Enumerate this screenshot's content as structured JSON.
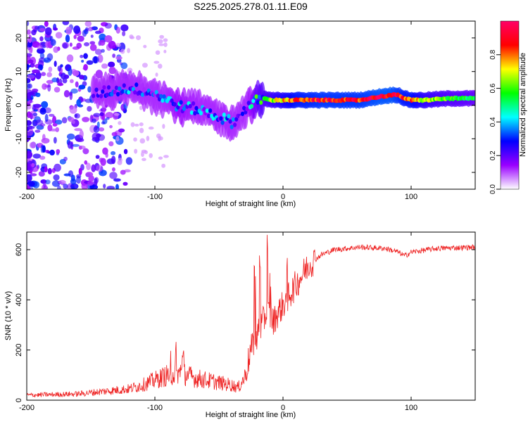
{
  "figure_title": "S225.2025.278.01.11.E09",
  "chart_data": [
    {
      "type": "heatmap",
      "title": "S225.2025.278.01.11.E09",
      "xlabel": "Height of straight line (km)",
      "ylabel": "Frequency (Hz)",
      "xlim": [
        -200,
        150
      ],
      "ylim": [
        -25,
        25
      ],
      "xticks": [
        -200,
        -100,
        0,
        100
      ],
      "yticks": [
        -20,
        -10,
        0,
        10,
        20
      ],
      "colorbar": {
        "label": "Normalized spectral amplitude",
        "range": [
          0,
          1
        ],
        "ticks": [
          "0.0",
          "0.2",
          "0.4",
          "0.6",
          "0.8"
        ],
        "tick_values": [
          0.0,
          0.2,
          0.4,
          0.6,
          0.8
        ],
        "colormap": [
          "#ffffff",
          "#9900ff",
          "#0000ff",
          "#00ffff",
          "#00ff00",
          "#ffff00",
          "#ff0000",
          "#ff0066"
        ]
      },
      "ridge": {
        "description": "frequency trace of strongest signal vs height",
        "x": [
          -145,
          -130,
          -120,
          -110,
          -100,
          -90,
          -80,
          -70,
          -60,
          -50,
          -40,
          -35,
          -30,
          -25,
          -20,
          -15,
          -10,
          0,
          10,
          30,
          60,
          75,
          85,
          90,
          95,
          100,
          110,
          130,
          150
        ],
        "freq": [
          3.5,
          4.5,
          5,
          4.5,
          3.5,
          1.5,
          -0.5,
          -1,
          -2,
          -3.5,
          -5,
          -4,
          -1,
          0,
          1.5,
          2,
          1.5,
          1.5,
          1.5,
          1.5,
          1.5,
          2.5,
          3,
          3,
          2,
          1.5,
          1.5,
          2.0,
          2.0
        ],
        "amplitude": [
          0.2,
          0.3,
          0.35,
          0.3,
          0.3,
          0.35,
          0.4,
          0.35,
          0.35,
          0.35,
          0.35,
          0.2,
          0.25,
          0.4,
          0.55,
          0.6,
          0.65,
          0.75,
          0.85,
          0.9,
          0.9,
          0.95,
          0.95,
          0.9,
          0.85,
          0.85,
          0.7,
          0.6,
          0.55
        ]
      }
    },
    {
      "type": "line",
      "xlabel": "Height of straight line (km)",
      "ylabel": "SNR (10 * v/v)",
      "xlim": [
        -200,
        150
      ],
      "ylim": [
        0,
        670
      ],
      "xticks": [
        -200,
        -100,
        0,
        100
      ],
      "yticks": [
        0,
        200,
        400,
        600
      ],
      "color": "#ee2222",
      "envelope": {
        "description": "approximate mean SNR trend vs height (noisy trace drawn around it)",
        "x": [
          -200,
          -160,
          -140,
          -120,
          -110,
          -100,
          -90,
          -80,
          -70,
          -60,
          -50,
          -40,
          -35,
          -30,
          -25,
          -20,
          -15,
          -12,
          -10,
          -8,
          -5,
          0,
          5,
          10,
          15,
          20,
          30,
          40,
          60,
          80,
          90,
          95,
          100,
          120,
          150
        ],
        "snr": [
          20,
          25,
          35,
          45,
          60,
          80,
          100,
          110,
          90,
          80,
          70,
          60,
          50,
          90,
          200,
          260,
          320,
          360,
          330,
          310,
          340,
          380,
          420,
          460,
          500,
          540,
          580,
          600,
          610,
          605,
          590,
          575,
          590,
          605,
          610
        ]
      },
      "peaks": {
        "x": [
          -88,
          -84,
          -78,
          -22,
          -18,
          -12,
          -10,
          3,
          5
        ],
        "snr": [
          220,
          240,
          200,
          560,
          600,
          670,
          520,
          610,
          440
        ]
      }
    }
  ]
}
